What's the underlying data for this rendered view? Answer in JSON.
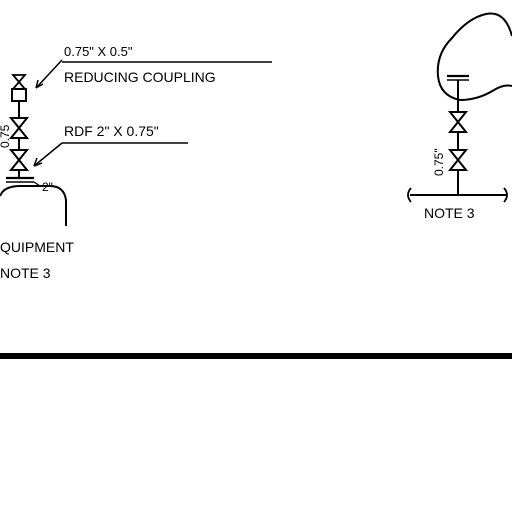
{
  "left_detail": {
    "coupling_size": "0.75\" X 0.5\"",
    "coupling_name": "REDUCING COUPLING",
    "rdf_label": "RDF 2\" X 0.75\"",
    "vertical_dim": "0.75",
    "base_size": "2\"",
    "equipment_label": "QUIPMENT",
    "note_label": "NOTE 3"
  },
  "right_detail": {
    "vertical_dim": "0.75\"",
    "note_label": "NOTE 3"
  }
}
